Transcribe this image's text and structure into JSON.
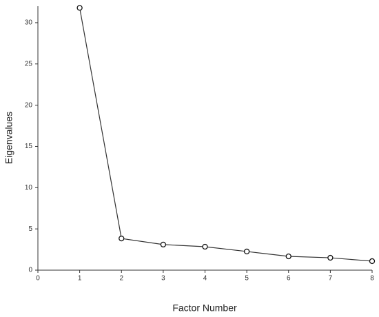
{
  "chart_data": {
    "type": "line",
    "x_label": "Factor Number",
    "y_label": "Eigenvalues",
    "x": [
      1,
      2,
      3,
      4,
      5,
      6,
      7,
      8
    ],
    "values": [
      31.8,
      3.84,
      3.1,
      2.84,
      2.26,
      1.67,
      1.5,
      1.09
    ],
    "color": "#333333",
    "xlim": [
      0,
      8
    ],
    "xticks": [
      0,
      1,
      2,
      3,
      4,
      5,
      6,
      7,
      8
    ],
    "ylim": [
      0,
      32
    ],
    "yticks": [
      0,
      5,
      10,
      15,
      20,
      25,
      30
    ],
    "grid": false
  }
}
